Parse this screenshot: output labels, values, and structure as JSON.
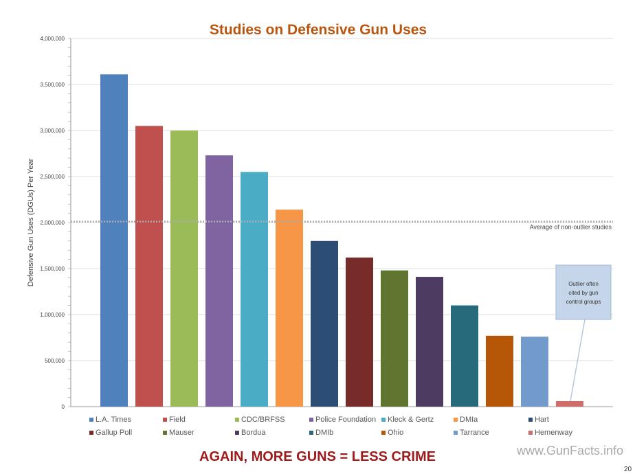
{
  "chart_data": {
    "type": "bar",
    "title": "Studies on Defensive Gun Uses",
    "ylabel": "Defensive Gun Uses (DGUs) Per Year",
    "xlabel": "",
    "ylim": [
      0,
      4000000
    ],
    "yticks": [
      0,
      500000,
      1000000,
      1500000,
      2000000,
      2500000,
      3000000,
      3500000,
      4000000
    ],
    "ytick_labels": [
      "0",
      "500,000",
      "1,000,000",
      "1,500,000",
      "2,000,000",
      "2,500,000",
      "3,000,000",
      "3,500,000",
      "4,000,000"
    ],
    "grid": true,
    "legend_placement": "bottom",
    "categories": [
      "L.A. Times",
      "Field",
      "CDC/BRFSS",
      "Police Foundation",
      "Kleck & Gertz",
      "DMIa",
      "Hart",
      "Gallup Poll",
      "Mauser",
      "Bordua",
      "DMIb",
      "Ohio",
      "Tarrance",
      "Hemenway"
    ],
    "values": [
      3610000,
      3050000,
      3000000,
      2730000,
      2550000,
      2140000,
      1800000,
      1620000,
      1480000,
      1410000,
      1100000,
      770000,
      760000,
      60000
    ],
    "colors": [
      "#4f81bd",
      "#c0504d",
      "#9bbb59",
      "#8064a2",
      "#4bacc6",
      "#f79646",
      "#2c4d75",
      "#772c2a",
      "#5f7530",
      "#4d3b62",
      "#276a7c",
      "#b65708",
      "#729aca",
      "#d06d6b"
    ],
    "reference_line": {
      "value": 2010000,
      "label": "Average of non-outlier studies"
    },
    "annotation": {
      "text": "Outlier often cited by gun control groups",
      "target": "Hemenway"
    }
  },
  "footer": {
    "tagline": "AGAIN, MORE GUNS = LESS CRIME",
    "site": "www.GunFacts.info",
    "page_number": "20"
  }
}
